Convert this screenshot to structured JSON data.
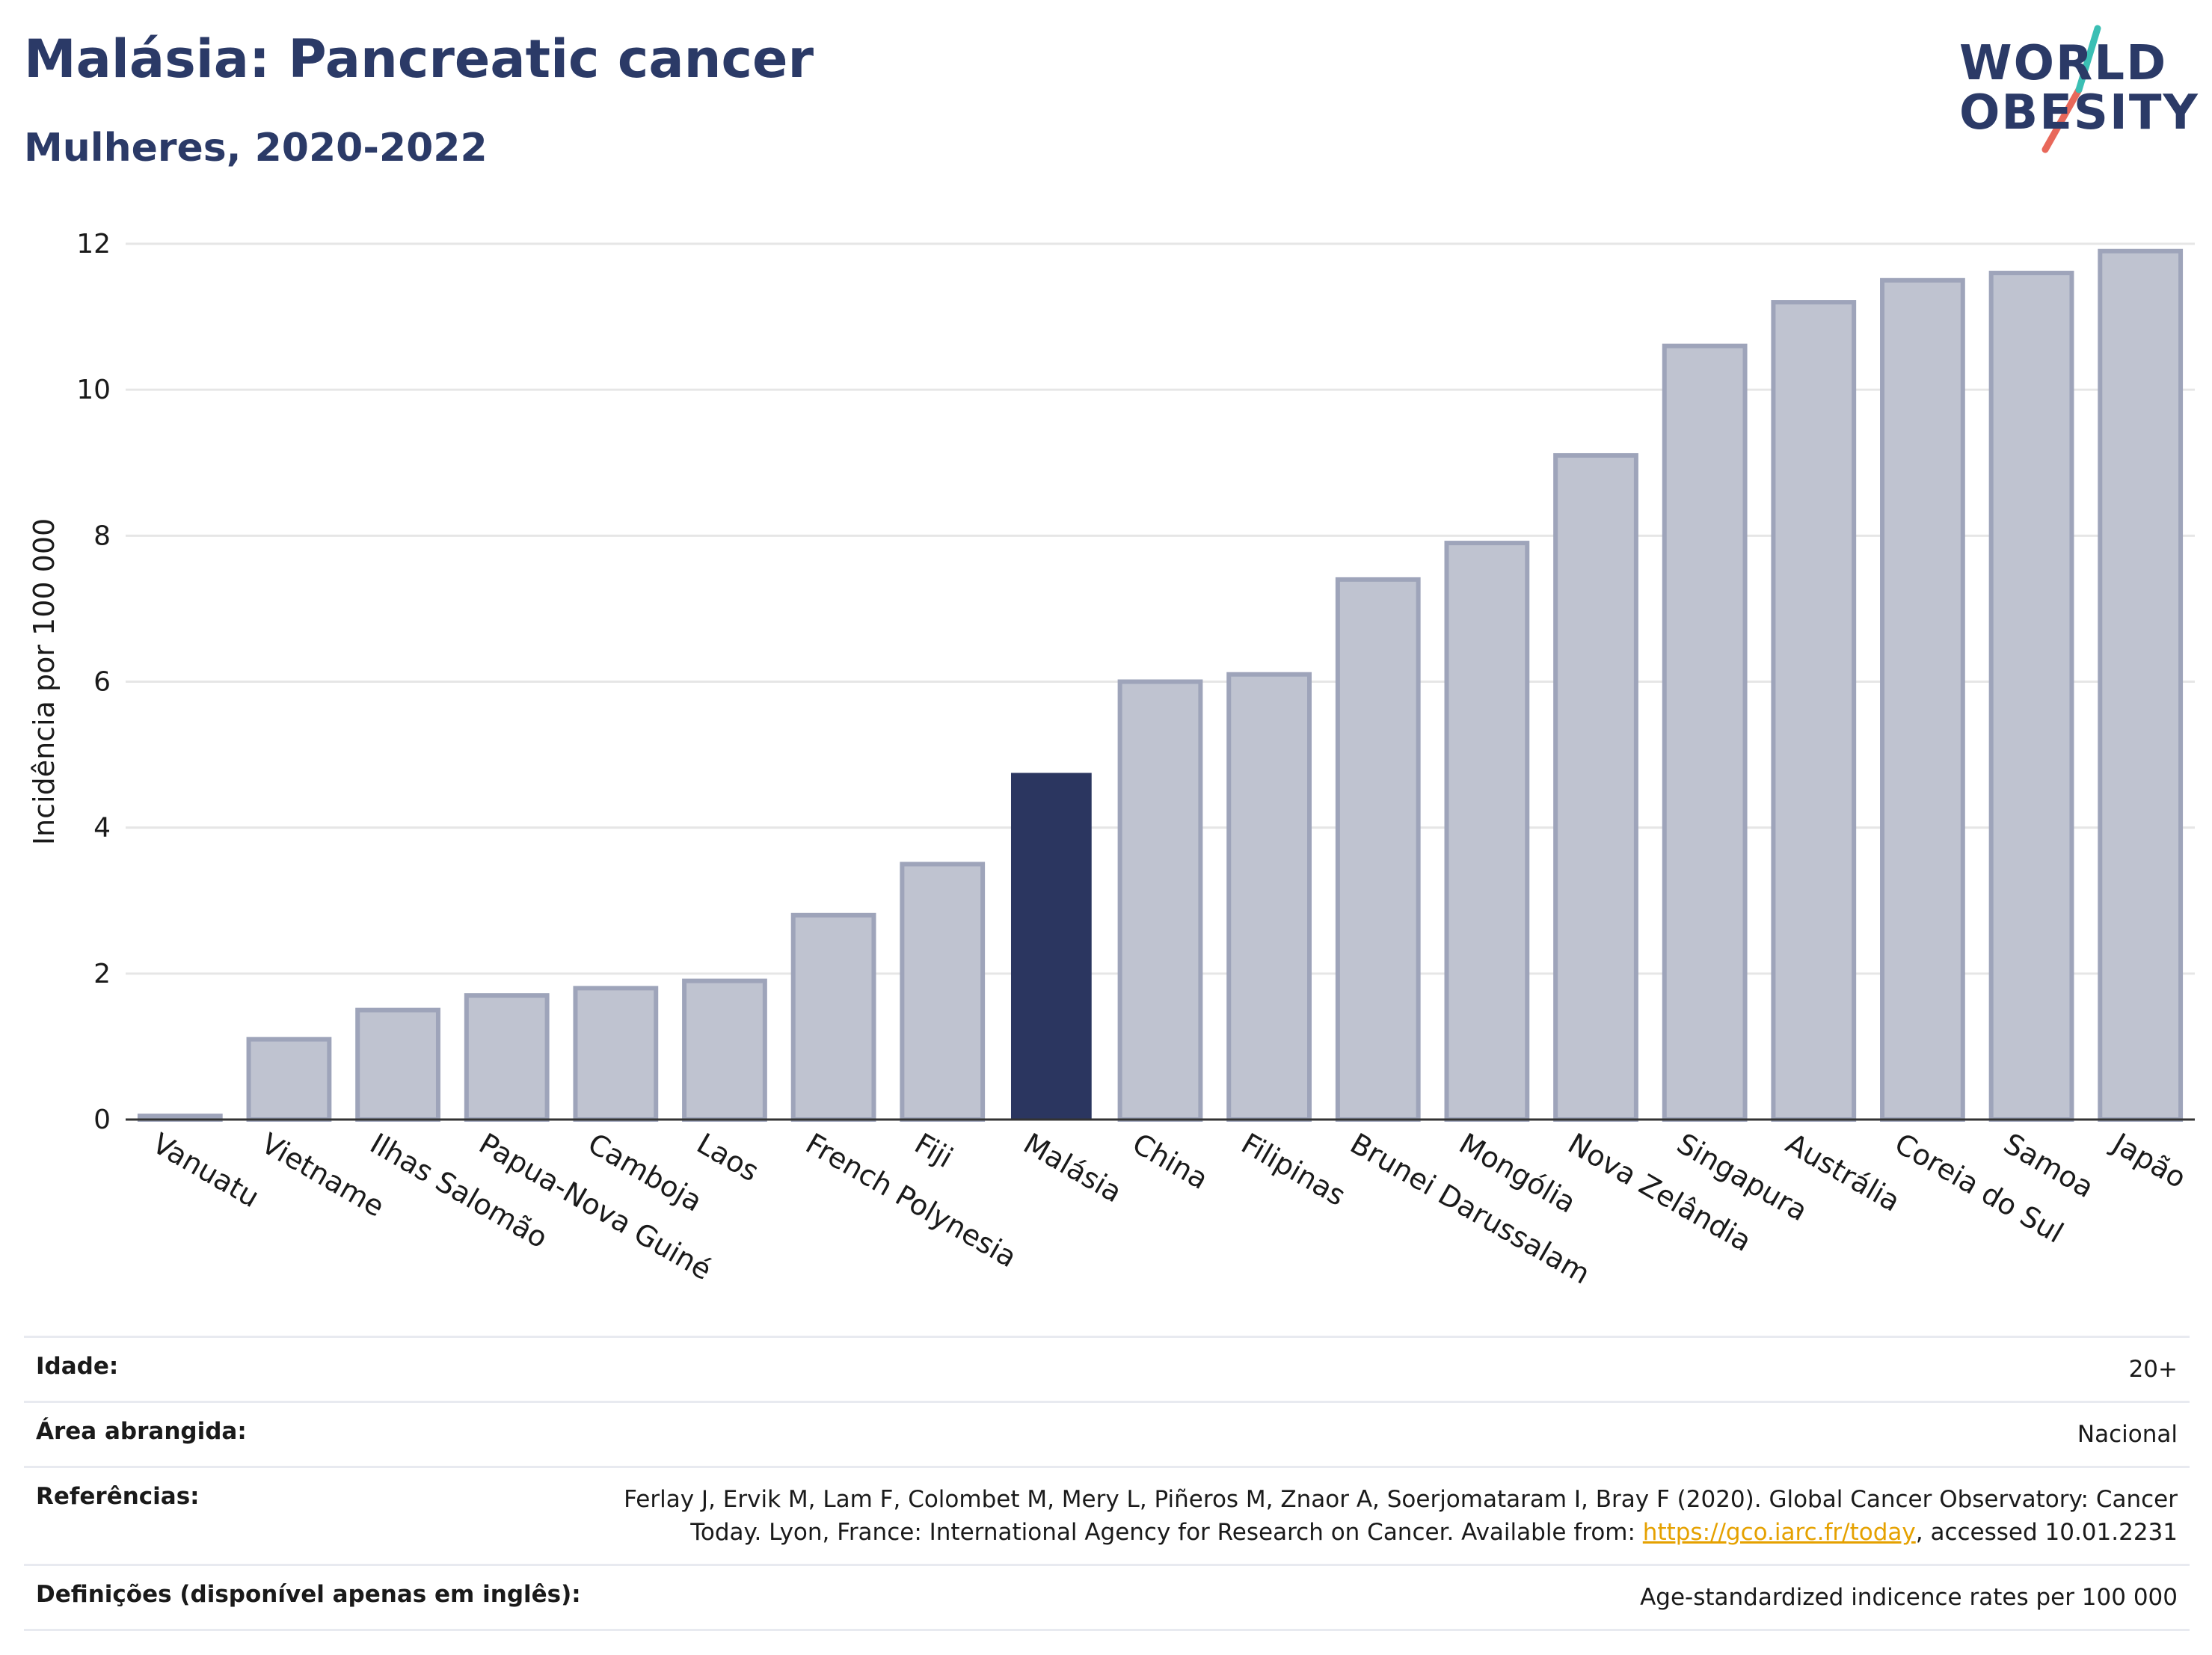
{
  "header": {
    "title": "Malásia: Pancreatic cancer",
    "subtitle": "Mulheres, 2020-2022"
  },
  "logo": {
    "line1": "WORLD",
    "line2": "OBESITY"
  },
  "chart_data": {
    "type": "bar",
    "ylabel": "Incidência por 100 000",
    "ylim": [
      0,
      12
    ],
    "yticks": [
      0,
      2,
      4,
      6,
      8,
      10,
      12
    ],
    "grid": true,
    "categories": [
      "Vanuatu",
      "Vietname",
      "Ilhas Salomão",
      "Papua-Nova Guiné",
      "Camboja",
      "Laos",
      "French Polynesia",
      "Fiji",
      "Malásia",
      "China",
      "Filipinas",
      "Brunei Darussalam",
      "Mongólia",
      "Nova Zelândia",
      "Singapura",
      "Austrália",
      "Coreia do Sul",
      "Samoa",
      "Japão"
    ],
    "values": [
      0.05,
      1.1,
      1.5,
      1.7,
      1.8,
      1.9,
      2.8,
      3.5,
      4.75,
      6.0,
      6.1,
      7.4,
      7.9,
      9.1,
      10.6,
      11.2,
      11.5,
      11.6,
      11.9
    ],
    "highlight": "Malásia",
    "colors": {
      "bar": "#bfc3d0",
      "bar_border": "#9ea4ba",
      "highlight": "#2b3660",
      "grid": "#e6e6e6",
      "axis": "#333333"
    }
  },
  "meta": {
    "age_label": "Idade:",
    "age_value": "20+",
    "area_label": "Área abrangida:",
    "area_value": "Nacional",
    "ref_label": "Referências:",
    "ref_text": "Ferlay J, Ervik M, Lam F, Colombet M, Mery L, Piñeros M, Znaor A, Soerjomataram I, Bray F (2020). Global Cancer Observatory: Cancer Today. Lyon, France: International Agency for Research on Cancer. Available from: ",
    "ref_link": "https://gco.iarc.fr/today",
    "ref_tail": ", accessed 10.01.2231",
    "def_label": "Definições (disponível apenas em inglês):",
    "def_value": "Age-standardized indicence rates per 100 000"
  }
}
